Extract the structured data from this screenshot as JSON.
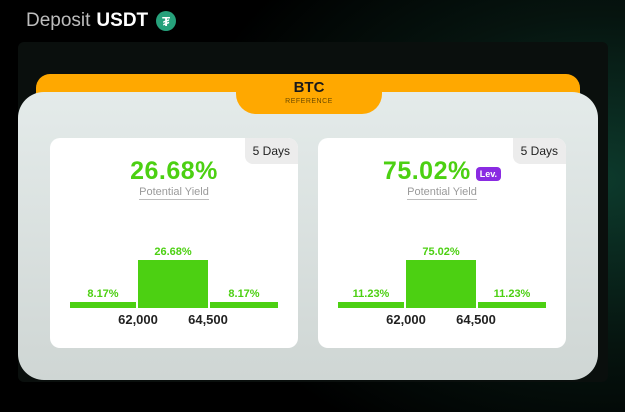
{
  "header": {
    "prefix": "Deposit",
    "currency": "USDT",
    "icon": "tether-icon"
  },
  "tab": {
    "title": "BTC",
    "subtitle": "REFERENCE"
  },
  "colors": {
    "accent": "#ffa800",
    "green": "#4cd012",
    "lev": "#8a2be2"
  },
  "cards": [
    {
      "days": "5 Days",
      "yield": "26.68%",
      "yield_label": "Potential Yield",
      "lev": null,
      "chart_data": {
        "type": "bar",
        "values": [
          8.17,
          26.68,
          8.17
        ],
        "labels": [
          "8.17%",
          "26.68%",
          "8.17%"
        ],
        "x_ticks": [
          "62,000",
          "64,500"
        ]
      }
    },
    {
      "days": "5 Days",
      "yield": "75.02%",
      "yield_label": "Potential Yield",
      "lev": "Lev.",
      "chart_data": {
        "type": "bar",
        "values": [
          11.23,
          75.02,
          11.23
        ],
        "labels": [
          "11.23%",
          "75.02%",
          "11.23%"
        ],
        "x_ticks": [
          "62,000",
          "64,500"
        ]
      }
    }
  ]
}
